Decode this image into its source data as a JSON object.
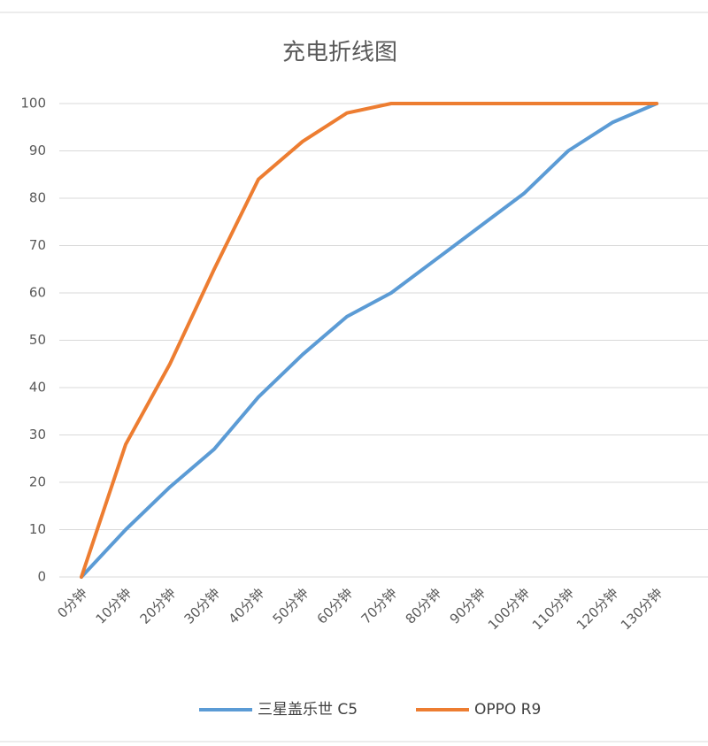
{
  "chart_data": {
    "type": "line",
    "title": "充电折线图",
    "categories": [
      "0分钟",
      "10分钟",
      "20分钟",
      "30分钟",
      "40分钟",
      "50分钟",
      "60分钟",
      "70分钟",
      "80分钟",
      "90分钟",
      "100分钟",
      "110分钟",
      "120分钟",
      "130分钟"
    ],
    "series": [
      {
        "name": "三星盖乐世 C5",
        "color": "#5b9bd5",
        "values": [
          0,
          10,
          19,
          27,
          38,
          47,
          55,
          60,
          67,
          74,
          81,
          90,
          96,
          100
        ]
      },
      {
        "name": "OPPO R9",
        "color": "#ed7d31",
        "values": [
          0,
          28,
          45,
          65,
          84,
          92,
          98,
          100,
          100,
          100,
          100,
          100,
          100,
          100
        ]
      }
    ],
    "ylim": [
      0,
      100
    ],
    "yticks": [
      0,
      10,
      20,
      30,
      40,
      50,
      60,
      70,
      80,
      90,
      100
    ],
    "grid": true,
    "legend": "bottom"
  }
}
